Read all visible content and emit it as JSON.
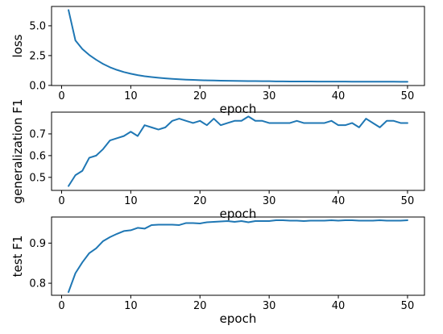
{
  "chart_data": [
    {
      "type": "line",
      "title": "",
      "xlabel": "epoch",
      "ylabel": "loss",
      "xlim": [
        -1.45,
        52.45
      ],
      "ylim": [
        -0.01,
        6.62
      ],
      "xticks": [
        0,
        10,
        20,
        30,
        40,
        50
      ],
      "yticks": [
        0.0,
        2.5,
        5.0
      ],
      "ytick_labels": [
        "0.0",
        "2.5",
        "5.0"
      ],
      "grid": false,
      "series": [
        {
          "x": [
            1,
            2,
            3,
            4,
            5,
            6,
            7,
            8,
            9,
            10,
            11,
            12,
            13,
            14,
            15,
            16,
            17,
            18,
            19,
            20,
            21,
            22,
            23,
            24,
            25,
            26,
            27,
            28,
            29,
            30,
            31,
            32,
            33,
            34,
            35,
            36,
            37,
            38,
            39,
            40,
            41,
            42,
            43,
            44,
            45,
            46,
            47,
            48,
            49,
            50
          ],
          "values": [
            6.32,
            3.77,
            3.05,
            2.55,
            2.15,
            1.8,
            1.52,
            1.3,
            1.12,
            0.98,
            0.86,
            0.77,
            0.7,
            0.64,
            0.59,
            0.55,
            0.51,
            0.48,
            0.46,
            0.44,
            0.42,
            0.41,
            0.4,
            0.39,
            0.38,
            0.37,
            0.36,
            0.36,
            0.35,
            0.35,
            0.34,
            0.34,
            0.33,
            0.33,
            0.33,
            0.33,
            0.32,
            0.32,
            0.32,
            0.32,
            0.32,
            0.31,
            0.31,
            0.31,
            0.31,
            0.31,
            0.31,
            0.31,
            0.3,
            0.3
          ]
        }
      ]
    },
    {
      "type": "line",
      "title": "",
      "xlabel": "epoch",
      "ylabel": "generalization F1",
      "xlim": [
        -1.45,
        52.45
      ],
      "ylim": [
        0.44,
        0.8
      ],
      "xticks": [
        0,
        10,
        20,
        30,
        40,
        50
      ],
      "yticks": [
        0.5,
        0.6,
        0.7
      ],
      "ytick_labels": [
        "0.5",
        "0.6",
        "0.7"
      ],
      "grid": false,
      "series": [
        {
          "x": [
            1,
            2,
            3,
            4,
            5,
            6,
            7,
            8,
            9,
            10,
            11,
            12,
            13,
            14,
            15,
            16,
            17,
            18,
            19,
            20,
            21,
            22,
            23,
            24,
            25,
            26,
            27,
            28,
            29,
            30,
            31,
            32,
            33,
            34,
            35,
            36,
            37,
            38,
            39,
            40,
            41,
            42,
            43,
            44,
            45,
            46,
            47,
            48,
            49,
            50
          ],
          "values": [
            0.46,
            0.51,
            0.53,
            0.59,
            0.6,
            0.63,
            0.67,
            0.68,
            0.69,
            0.71,
            0.69,
            0.74,
            0.73,
            0.72,
            0.73,
            0.76,
            0.77,
            0.76,
            0.75,
            0.76,
            0.74,
            0.77,
            0.74,
            0.75,
            0.76,
            0.76,
            0.78,
            0.76,
            0.76,
            0.75,
            0.75,
            0.75,
            0.75,
            0.76,
            0.75,
            0.75,
            0.75,
            0.75,
            0.76,
            0.74,
            0.74,
            0.75,
            0.73,
            0.77,
            0.75,
            0.73,
            0.76,
            0.76,
            0.75,
            0.75
          ]
        }
      ]
    },
    {
      "type": "line",
      "title": "",
      "xlabel": "epoch",
      "ylabel": "test F1",
      "xlim": [
        -1.45,
        52.45
      ],
      "ylim": [
        0.77,
        0.965
      ],
      "xticks": [
        0,
        10,
        20,
        30,
        40,
        50
      ],
      "yticks": [
        0.8,
        0.9
      ],
      "ytick_labels": [
        "0.8",
        "0.9"
      ],
      "grid": false,
      "series": [
        {
          "x": [
            1,
            2,
            3,
            4,
            5,
            6,
            7,
            8,
            9,
            10,
            11,
            12,
            13,
            14,
            15,
            16,
            17,
            18,
            19,
            20,
            21,
            22,
            23,
            24,
            25,
            26,
            27,
            28,
            29,
            30,
            31,
            32,
            33,
            34,
            35,
            36,
            37,
            38,
            39,
            40,
            41,
            42,
            43,
            44,
            45,
            46,
            47,
            48,
            49,
            50
          ],
          "values": [
            0.778,
            0.825,
            0.852,
            0.875,
            0.887,
            0.905,
            0.915,
            0.923,
            0.93,
            0.932,
            0.938,
            0.936,
            0.945,
            0.946,
            0.946,
            0.946,
            0.945,
            0.95,
            0.95,
            0.949,
            0.952,
            0.953,
            0.954,
            0.955,
            0.953,
            0.955,
            0.952,
            0.955,
            0.955,
            0.955,
            0.957,
            0.957,
            0.956,
            0.956,
            0.955,
            0.956,
            0.956,
            0.956,
            0.957,
            0.956,
            0.957,
            0.957,
            0.956,
            0.956,
            0.956,
            0.957,
            0.956,
            0.956,
            0.956,
            0.957
          ]
        }
      ]
    }
  ],
  "style": {
    "line_color": "#1f77b4",
    "axis_color": "#000000",
    "background": "#ffffff"
  }
}
